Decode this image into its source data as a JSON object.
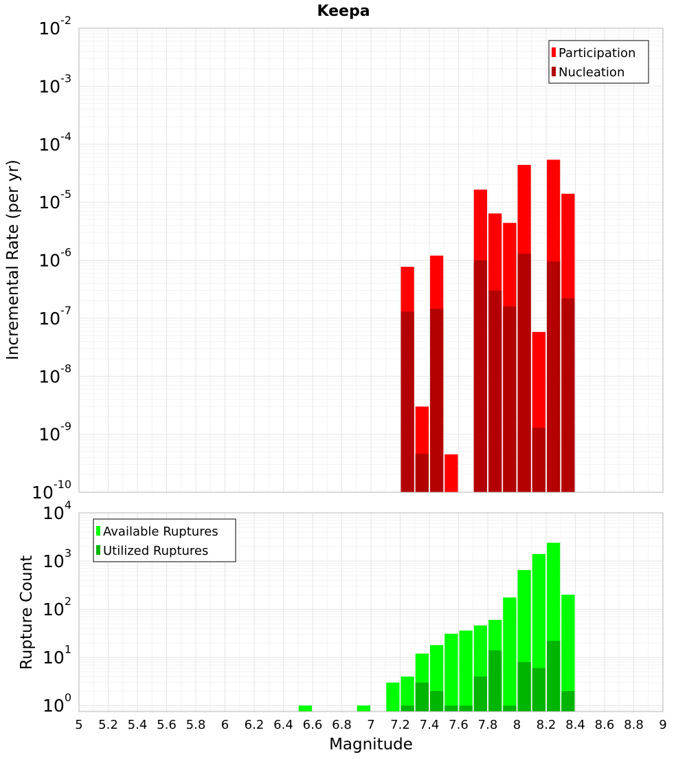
{
  "chart_data": [
    {
      "type": "bar",
      "title": "Keepa",
      "xlabel": "",
      "ylabel": "Incremental Rate (per yr)",
      "yscale": "log",
      "ylim": [
        1e-10,
        0.01
      ],
      "xlim": [
        5,
        9
      ],
      "grid": true,
      "legend_position": "top-right",
      "bar_width": 0.1,
      "series": [
        {
          "name": "Participation",
          "color": "#ff0000",
          "x": [
            7.25,
            7.35,
            7.45,
            7.55,
            7.75,
            7.85,
            7.95,
            8.05,
            8.15,
            8.25,
            8.35
          ],
          "values": [
            7.7e-07,
            3e-09,
            1.2e-06,
            4.5e-10,
            1.65e-05,
            6.4e-06,
            4.4e-06,
            4.4e-05,
            5.8e-08,
            5.4e-05,
            1.4e-05
          ]
        },
        {
          "name": "Nucleation",
          "color": "#b30000",
          "x": [
            7.25,
            7.35,
            7.45,
            7.75,
            7.85,
            7.95,
            8.05,
            8.15,
            8.25,
            8.35
          ],
          "values": [
            1.3e-07,
            4.6e-10,
            1.45e-07,
            1e-06,
            3e-07,
            1.6e-07,
            1.3e-06,
            1.3e-09,
            9.5e-07,
            2.2e-07
          ]
        }
      ]
    },
    {
      "type": "bar",
      "title": "",
      "xlabel": "Magnitude",
      "ylabel": "Rupture Count",
      "yscale": "log",
      "ylim": [
        0.75,
        10000
      ],
      "xlim": [
        5,
        9
      ],
      "xticks": [
        "5",
        "5.2",
        "5.4",
        "5.6",
        "5.8",
        "6",
        "6.2",
        "6.4",
        "6.6",
        "6.8",
        "7",
        "7.2",
        "7.4",
        "7.6",
        "7.8",
        "8",
        "8.2",
        "8.4",
        "8.6",
        "8.8",
        "9"
      ],
      "grid": true,
      "legend_position": "top-left",
      "bar_width": 0.1,
      "series": [
        {
          "name": "Available Ruptures",
          "color": "#00ff00",
          "x": [
            6.55,
            6.95,
            7.15,
            7.25,
            7.35,
            7.45,
            7.55,
            7.65,
            7.75,
            7.85,
            7.95,
            8.05,
            8.15,
            8.25,
            8.35
          ],
          "values": [
            1,
            1,
            3,
            4,
            12,
            18,
            31,
            36,
            46,
            60,
            175,
            650,
            1400,
            2400,
            200
          ]
        },
        {
          "name": "Utilized Ruptures",
          "color": "#00b400",
          "x": [
            7.25,
            7.35,
            7.45,
            7.55,
            7.65,
            7.75,
            7.85,
            7.95,
            8.05,
            8.15,
            8.25,
            8.35
          ],
          "values": [
            1,
            3,
            2,
            1,
            1,
            4,
            14,
            1,
            8,
            6,
            22,
            2
          ]
        }
      ]
    }
  ]
}
